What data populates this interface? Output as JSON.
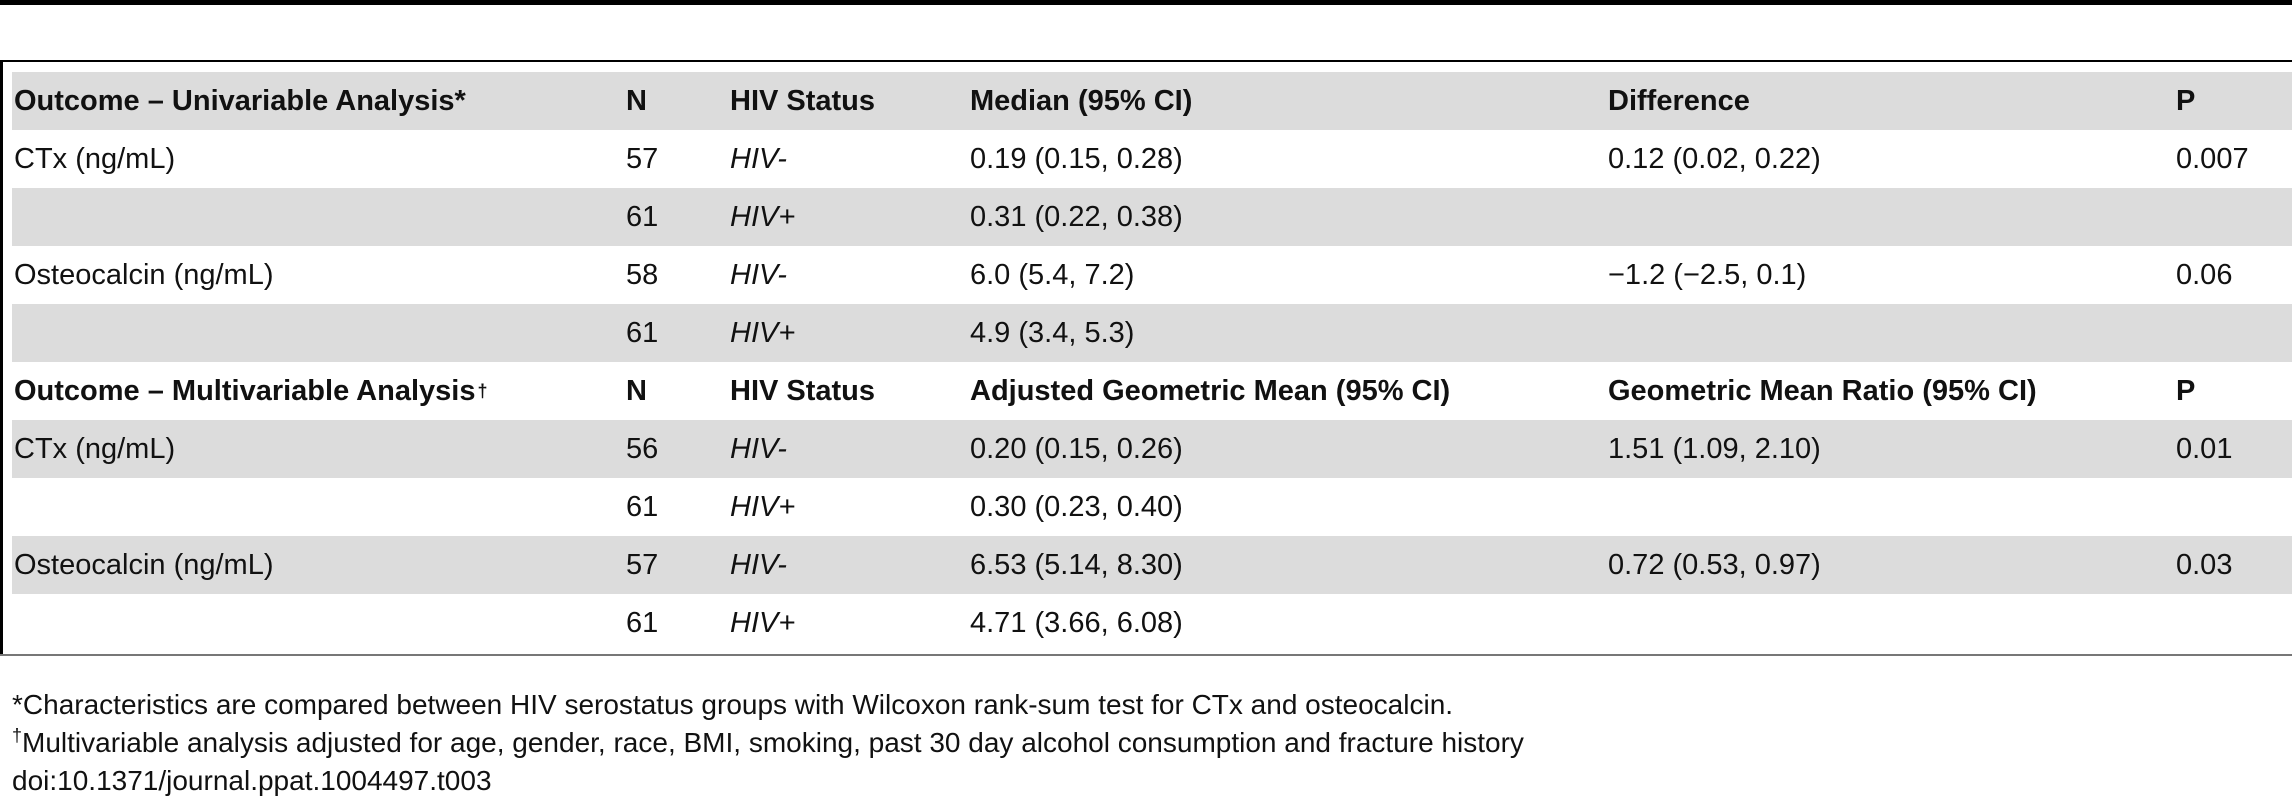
{
  "sections": [
    {
      "header": {
        "outcome": "Outcome – Univariable Analysis*",
        "outcome_marker": "",
        "n": "N",
        "status": "HIV Status",
        "stat": "Median (95% CI)",
        "diff": "Difference",
        "p": "P"
      },
      "rows": [
        {
          "outcome": "CTx (ng/mL)",
          "n": "57",
          "status": "HIV-",
          "stat": "0.19 (0.15, 0.28)",
          "diff": "0.12 (0.02, 0.22)",
          "p": "0.007"
        },
        {
          "outcome": "",
          "n": "61",
          "status": "HIV+",
          "stat": "0.31 (0.22, 0.38)",
          "diff": "",
          "p": ""
        },
        {
          "outcome": "Osteocalcin (ng/mL)",
          "n": "58",
          "status": "HIV-",
          "stat": "6.0 (5.4, 7.2)",
          "diff": "−1.2 (−2.5, 0.1)",
          "p": "0.06"
        },
        {
          "outcome": "",
          "n": "61",
          "status": "HIV+",
          "stat": "4.9 (3.4, 5.3)",
          "diff": "",
          "p": ""
        }
      ]
    },
    {
      "header": {
        "outcome": "Outcome – Multivariable Analysis",
        "outcome_marker": "†",
        "n": "N",
        "status": "HIV Status",
        "stat": "Adjusted Geometric Mean (95% CI)",
        "diff": "Geometric Mean Ratio (95% CI)",
        "p": "P"
      },
      "rows": [
        {
          "outcome": "CTx (ng/mL)",
          "n": "56",
          "status": "HIV-",
          "stat": "0.20 (0.15, 0.26)",
          "diff": "1.51 (1.09, 2.10)",
          "p": "0.01"
        },
        {
          "outcome": "",
          "n": "61",
          "status": "HIV+",
          "stat": "0.30 (0.23, 0.40)",
          "diff": "",
          "p": ""
        },
        {
          "outcome": "Osteocalcin (ng/mL)",
          "n": "57",
          "status": "HIV-",
          "stat": "6.53 (5.14, 8.30)",
          "diff": "0.72 (0.53, 0.97)",
          "p": "0.03"
        },
        {
          "outcome": "",
          "n": "61",
          "status": "HIV+",
          "stat": "4.71 (3.66, 6.08)",
          "diff": "",
          "p": ""
        }
      ]
    }
  ],
  "footnotes": {
    "note1": "*Characteristics are compared between HIV serostatus groups with Wilcoxon rank-sum test for CTx and osteocalcin.",
    "note2_marker": "†",
    "note2": "Multivariable analysis adjusted for age, gender, race, BMI, smoking, past 30 day alcohol consumption and fracture history",
    "doi": "doi:10.1371/journal.ppat.1004497.t003"
  }
}
